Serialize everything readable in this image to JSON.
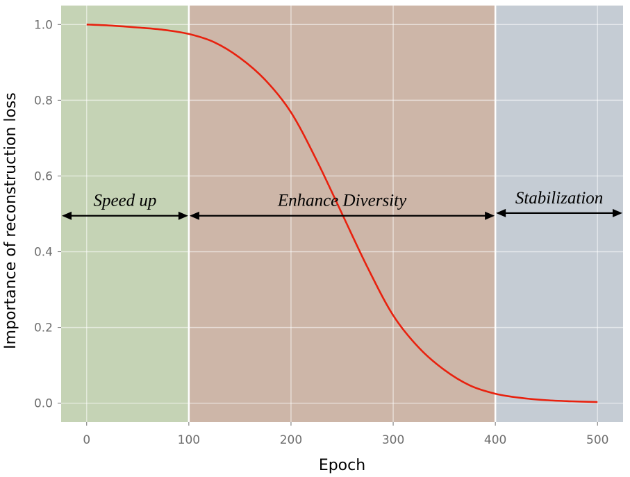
{
  "chart_data": {
    "type": "line",
    "title": "",
    "xlabel": "Epoch",
    "ylabel": "Importance of reconstruction loss",
    "xlim": [
      -25,
      525
    ],
    "ylim": [
      -0.05,
      1.05
    ],
    "xticks": [
      0,
      100,
      200,
      300,
      400,
      500
    ],
    "yticks": [
      0.0,
      0.2,
      0.4,
      0.6,
      0.8,
      1.0
    ],
    "xtick_labels": [
      "0",
      "100",
      "200",
      "300",
      "400",
      "500"
    ],
    "ytick_labels": [
      "0.0",
      "0.2",
      "0.4",
      "0.6",
      "0.8",
      "1.0"
    ],
    "grid": true,
    "series": [
      {
        "name": "Importance of reconstruction loss",
        "color": "#e8210e",
        "x": [
          0,
          25,
          50,
          75,
          100,
          125,
          150,
          175,
          200,
          225,
          250,
          275,
          300,
          325,
          350,
          375,
          400,
          425,
          450,
          475,
          500
        ],
        "y": [
          1.0,
          0.997,
          0.992,
          0.986,
          0.975,
          0.953,
          0.912,
          0.853,
          0.768,
          0.642,
          0.5,
          0.358,
          0.232,
          0.147,
          0.088,
          0.047,
          0.025,
          0.014,
          0.008,
          0.005,
          0.003
        ]
      }
    ],
    "regions": [
      {
        "label": "Speed up",
        "x_start": -25,
        "x_end": 100,
        "color": "#c5d3b5",
        "arrow_y": 0.495
      },
      {
        "label": "Enhance Diversity",
        "x_start": 100,
        "x_end": 400,
        "color": "#cdb6a8",
        "arrow_y": 0.495
      },
      {
        "label": "Stabilization",
        "x_start": 400,
        "x_end": 525,
        "color": "#c5ccd4",
        "arrow_y": 0.502
      }
    ]
  }
}
